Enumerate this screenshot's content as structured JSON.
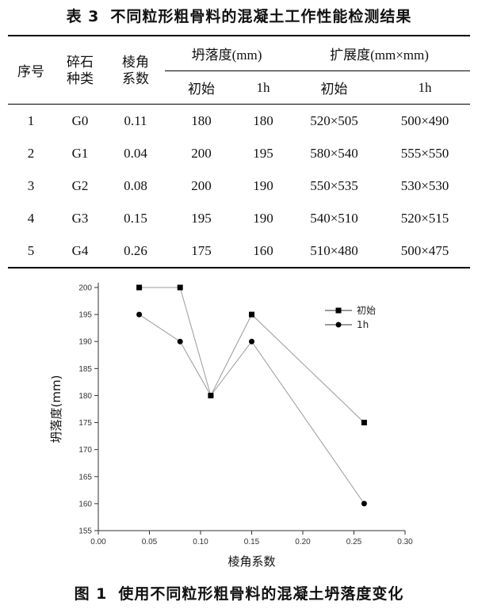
{
  "table": {
    "label": "表 3",
    "title": "不同粒形粗骨料的混凝土工作性能检测结果",
    "headers": {
      "seq": "序号",
      "stone_a": "碎石",
      "stone_b": "种类",
      "angle_a": "棱角",
      "angle_b": "系数",
      "slump": "坍落度(mm)",
      "spread": "扩展度(mm×mm)",
      "initial": "初始",
      "hour": "1h"
    },
    "rows": [
      {
        "seq": "1",
        "type": "G0",
        "coef": "0.11",
        "slump_initial": "180",
        "slump_1h": "180",
        "spread_initial": "520×505",
        "spread_1h": "500×490"
      },
      {
        "seq": "2",
        "type": "G1",
        "coef": "0.04",
        "slump_initial": "200",
        "slump_1h": "195",
        "spread_initial": "580×540",
        "spread_1h": "555×550"
      },
      {
        "seq": "3",
        "type": "G2",
        "coef": "0.08",
        "slump_initial": "200",
        "slump_1h": "190",
        "spread_initial": "550×535",
        "spread_1h": "530×530"
      },
      {
        "seq": "4",
        "type": "G3",
        "coef": "0.15",
        "slump_initial": "195",
        "slump_1h": "190",
        "spread_initial": "540×510",
        "spread_1h": "520×515"
      },
      {
        "seq": "5",
        "type": "G4",
        "coef": "0.26",
        "slump_initial": "175",
        "slump_1h": "160",
        "spread_initial": "510×480",
        "spread_1h": "500×475"
      }
    ]
  },
  "figure": {
    "label": "图 1",
    "caption": "使用不同粒形粗骨料的混凝土坍落度变化"
  },
  "chart_data": {
    "type": "line",
    "title": "",
    "xlabel": "棱角系数",
    "ylabel": "坍落度(mm)",
    "xlim": [
      0.0,
      0.3
    ],
    "ylim": [
      155,
      200
    ],
    "xticks": [
      "0.00",
      "0.05",
      "0.10",
      "0.15",
      "0.20",
      "0.25",
      "0.30"
    ],
    "yticks": [
      "155",
      "160",
      "165",
      "170",
      "175",
      "180",
      "185",
      "190",
      "195",
      "200"
    ],
    "legend_position": "top-right",
    "grid": false,
    "series": [
      {
        "name": "初始",
        "marker": "square",
        "color": "#000000",
        "line_color": "#9a9a9a",
        "x": [
          0.04,
          0.08,
          0.11,
          0.15,
          0.26
        ],
        "y": [
          200,
          200,
          180,
          195,
          175
        ]
      },
      {
        "name": "1h",
        "marker": "circle",
        "color": "#000000",
        "line_color": "#9a9a9a",
        "x": [
          0.04,
          0.08,
          0.11,
          0.15,
          0.26
        ],
        "y": [
          195,
          190,
          180,
          190,
          160
        ]
      }
    ]
  }
}
